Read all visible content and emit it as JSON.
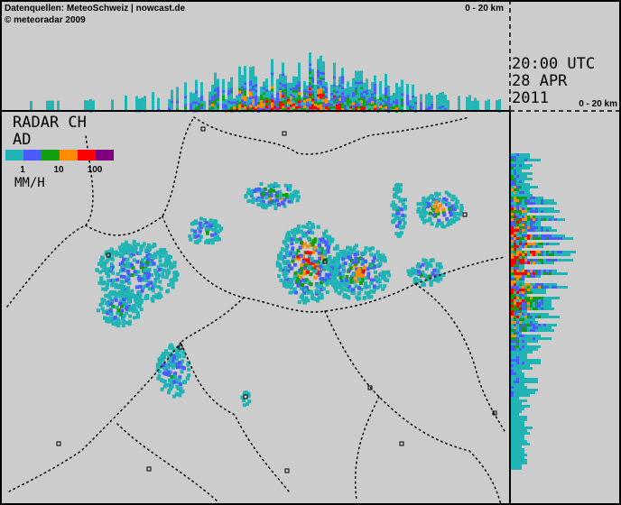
{
  "header": {
    "source": "Datenquellen: MeteoSchweiz | nowcast.de",
    "copyright": "© meteoradar 2009",
    "scale_top": "0 - 20 km"
  },
  "timestamp": {
    "time": "20:00 UTC",
    "date": "28 APR",
    "year": "2011",
    "scale_side": "0 - 20 km"
  },
  "legend": {
    "title": "RADAR CH",
    "subtitle": "AD",
    "labels": [
      "1",
      "10",
      "100"
    ],
    "unit": "MM/H"
  }
}
